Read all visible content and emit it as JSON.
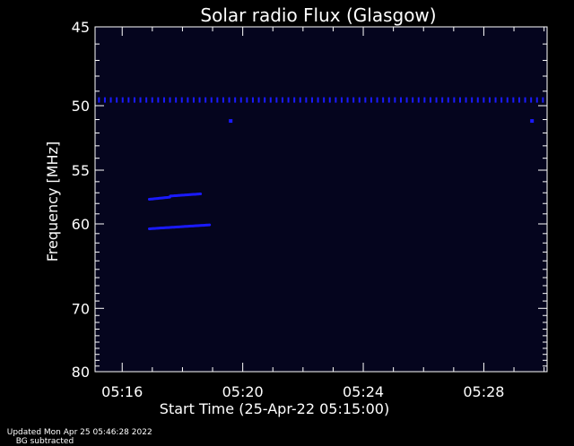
{
  "chart_data": {
    "type": "heatmap",
    "title": "Solar radio Flux (Glasgow)",
    "xlabel": "Start Time (25-Apr-22 05:15:00)",
    "ylabel": "Frequency [MHz]",
    "x_ticks": [
      "05:16",
      "05:20",
      "05:24",
      "05:28"
    ],
    "x_tick_minutes": [
      16,
      20,
      24,
      28
    ],
    "xlim_minutes": [
      15.1,
      30.1
    ],
    "y_ticks": [
      45,
      50,
      55,
      60,
      70,
      80
    ],
    "ylim": [
      45,
      80
    ],
    "y_scale": "reciprocal",
    "grid": false,
    "colors": {
      "background": "#000000",
      "plot_background": "#05051e",
      "signal": "#1a1aff",
      "axes": "#ffffff"
    },
    "features": [
      {
        "kind": "constant-line",
        "freq_mhz": 49.6,
        "x_from_minutes": 15.2,
        "x_to_minutes": 30.1
      },
      {
        "kind": "burst",
        "x_from_minutes": 16.9,
        "x_to_minutes": 17.6,
        "freq_from_mhz": 57.6,
        "freq_to_mhz": 57.4
      },
      {
        "kind": "burst",
        "x_from_minutes": 17.6,
        "x_to_minutes": 18.6,
        "freq_from_mhz": 57.3,
        "freq_to_mhz": 57.1
      },
      {
        "kind": "burst",
        "x_from_minutes": 16.9,
        "x_to_minutes": 18.9,
        "freq_from_mhz": 60.5,
        "freq_to_mhz": 60.1
      },
      {
        "kind": "spot",
        "x_minutes": 19.6,
        "freq_mhz": 51.1
      },
      {
        "kind": "spot",
        "x_minutes": 29.6,
        "freq_mhz": 51.1
      }
    ]
  },
  "footer": {
    "updated": "Updated Mon Apr 25 05:46:28 2022",
    "note": "BG subtracted"
  }
}
